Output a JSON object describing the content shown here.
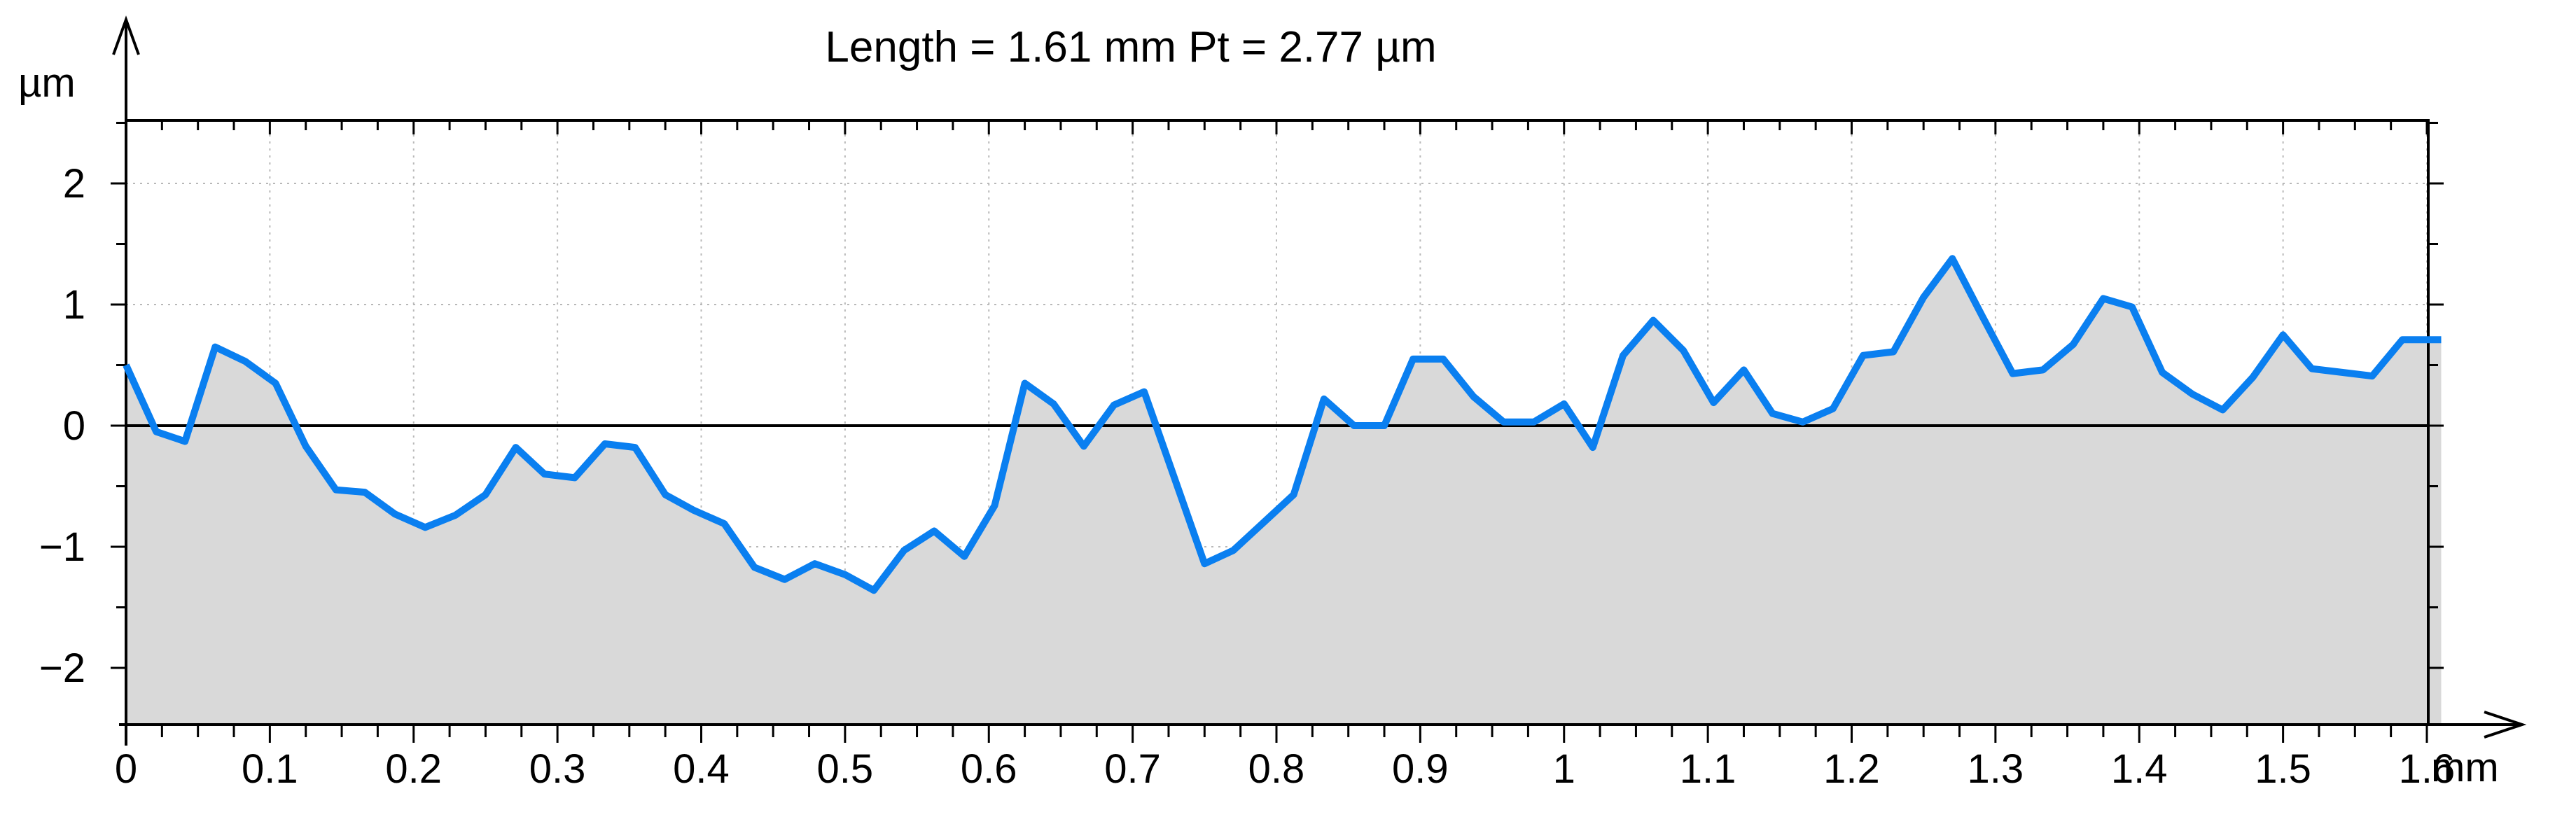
{
  "title": "Length = 1.61 mm   Pt = 2.77 µm",
  "chart_data": {
    "type": "area",
    "title": "Length = 1.61 mm   Pt = 2.77 µm",
    "xlabel": "mm",
    "ylabel": "µm",
    "xlim": [
      0,
      1.61
    ],
    "ylim": [
      -2.5,
      2.5
    ],
    "x_ticks": [
      0,
      0.1,
      0.2,
      0.3,
      0.4,
      0.5,
      0.6,
      0.7,
      0.8,
      0.9,
      1,
      1.1,
      1.2,
      1.3,
      1.4,
      1.5,
      1.6
    ],
    "x_tick_labels": [
      "0",
      "0.1",
      "0.2",
      "0.3",
      "0.4",
      "0.5",
      "0.6",
      "0.7",
      "0.8",
      "0.9",
      "1",
      "1.1",
      "1.2",
      "1.3",
      "1.4",
      "1.5",
      "1.6"
    ],
    "y_ticks": [
      -2,
      -1,
      0,
      1,
      2
    ],
    "y_tick_labels": [
      "−2",
      "−1",
      "0",
      "1",
      "2"
    ],
    "grid": true,
    "zero_line": true,
    "line_color": "#0a7ff0",
    "fill_color": "#d9d9d9",
    "series": [
      {
        "x": [
          0,
          0.021,
          0.041,
          0.062,
          0.083,
          0.104,
          0.125,
          0.146,
          0.166,
          0.187,
          0.208,
          0.229,
          0.25,
          0.271,
          0.291,
          0.312,
          0.333,
          0.354,
          0.375,
          0.395,
          0.416,
          0.437,
          0.458,
          0.479,
          0.5,
          0.52,
          0.541,
          0.562,
          0.583,
          0.604,
          0.625,
          0.645,
          0.666,
          0.687,
          0.708,
          0.729,
          0.75,
          0.77,
          0.791,
          0.812,
          0.833,
          0.854,
          0.875,
          0.895,
          0.916,
          0.937,
          0.958,
          0.979,
          1.0,
          1.02,
          1.041,
          1.062,
          1.083,
          1.104,
          1.125,
          1.145,
          1.166,
          1.187,
          1.208,
          1.229,
          1.25,
          1.27,
          1.291,
          1.312,
          1.333,
          1.354,
          1.375,
          1.395,
          1.416,
          1.437,
          1.458,
          1.479,
          1.5,
          1.52,
          1.541,
          1.562,
          1.583,
          1.604,
          1.61
        ],
        "y": [
          0.5,
          -0.05,
          -0.13,
          0.65,
          0.53,
          0.35,
          -0.17,
          -0.53,
          -0.55,
          -0.73,
          -0.84,
          -0.74,
          -0.57,
          -0.18,
          -0.4,
          -0.43,
          -0.15,
          -0.18,
          -0.57,
          -0.7,
          -0.81,
          -1.17,
          -1.27,
          -1.14,
          -1.23,
          -1.36,
          -1.03,
          -0.87,
          -1.08,
          -0.66,
          0.35,
          0.18,
          -0.17,
          0.17,
          0.28,
          -0.43,
          -1.14,
          -1.03,
          -0.8,
          -0.57,
          0.22,
          0.0,
          0.0,
          0.55,
          0.55,
          0.24,
          0.03,
          0.03,
          0.18,
          -0.18,
          0.58,
          0.87,
          0.62,
          0.19,
          0.46,
          0.1,
          0.03,
          0.14,
          0.58,
          0.61,
          1.06,
          1.38,
          0.9,
          0.43,
          0.46,
          0.67,
          1.05,
          0.98,
          0.44,
          0.26,
          0.13,
          0.4,
          0.75,
          0.47,
          0.44,
          0.41,
          0.71,
          0.71,
          0.71
        ]
      }
    ]
  }
}
